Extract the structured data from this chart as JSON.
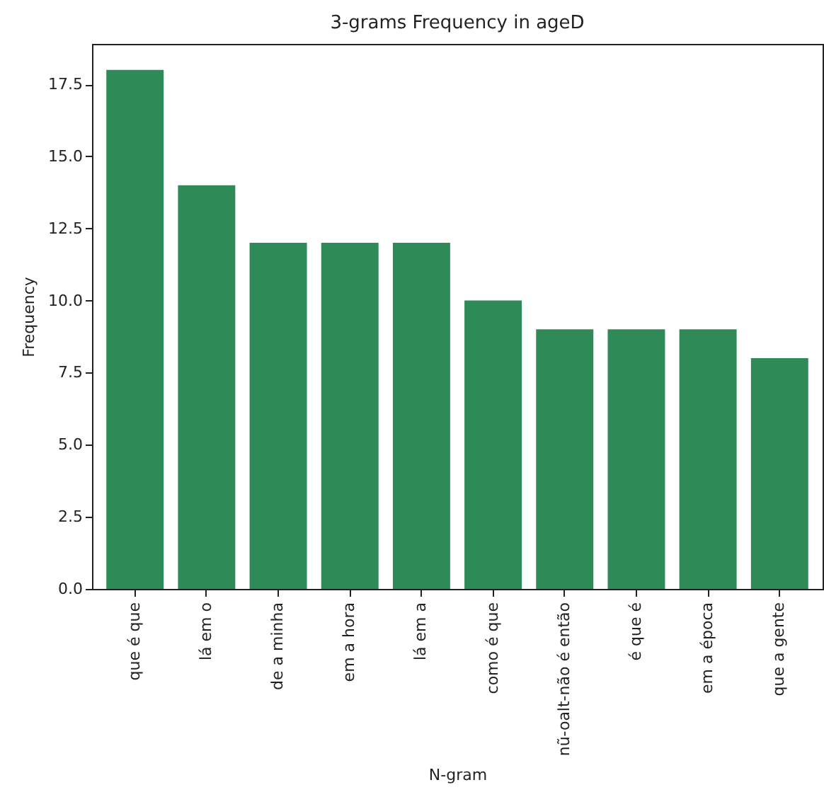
{
  "chart_data": {
    "type": "bar",
    "title": "3-grams Frequency in ageD",
    "xlabel": "N-gram",
    "ylabel": "Frequency",
    "categories": [
      "que é que",
      "lá em o",
      "de a minha",
      "em a hora",
      "lá em a",
      "como é que",
      "nũ-oalt-não é então",
      "é que é",
      "em a época",
      "que a gente"
    ],
    "values": [
      18,
      14,
      12,
      12,
      12,
      10,
      9,
      9,
      9,
      8
    ],
    "color": "#2e8b57",
    "ylim": [
      0,
      18.9
    ],
    "yticks": [
      {
        "value": 0,
        "label": "0.0"
      },
      {
        "value": 2.5,
        "label": "2.5"
      },
      {
        "value": 5,
        "label": "5.0"
      },
      {
        "value": 7.5,
        "label": "7.5"
      },
      {
        "value": 10,
        "label": "10.0"
      },
      {
        "value": 12.5,
        "label": "12.5"
      },
      {
        "value": 15,
        "label": "15.0"
      },
      {
        "value": 17.5,
        "label": "17.5"
      }
    ],
    "grid": false
  }
}
